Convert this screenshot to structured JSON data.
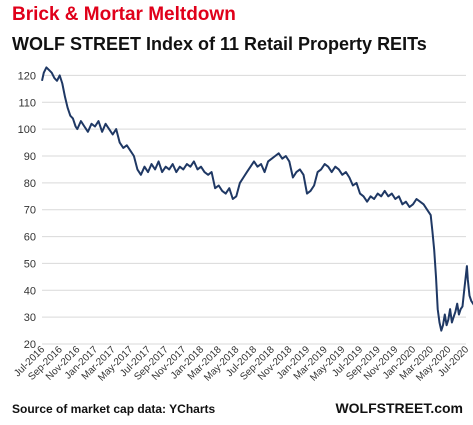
{
  "chart_data": {
    "type": "line",
    "title": "Brick & Mortar Meltdown",
    "subtitle": "WOLF STREET Index of 11 Retail Property REITs",
    "ylim": [
      20,
      125
    ],
    "yticks": [
      20,
      30,
      40,
      50,
      60,
      70,
      80,
      90,
      100,
      110,
      120
    ],
    "xlabels": [
      "Jul-2016",
      "Sep-2016",
      "Nov-2016",
      "Jan-2017",
      "Mar-2017",
      "May-2017",
      "Jul-2017",
      "Sep-2017",
      "Nov-2017",
      "Jan-2018",
      "Mar-2018",
      "May-2018",
      "Jul-2018",
      "Sep-2018",
      "Nov-2018",
      "Jan-2019",
      "Mar-2019",
      "May-2019",
      "Jul-2019",
      "Sep-2019",
      "Nov-2019",
      "Jan-2020",
      "Mar-2020",
      "May-2020",
      "Jul-2020"
    ],
    "grid": true,
    "series": [
      {
        "color": "#1f3864",
        "points": [
          [
            0.0,
            118
          ],
          [
            0.1,
            121
          ],
          [
            0.25,
            123
          ],
          [
            0.4,
            122
          ],
          [
            0.55,
            121
          ],
          [
            0.7,
            119
          ],
          [
            0.85,
            118
          ],
          [
            1.0,
            120
          ],
          [
            1.15,
            117
          ],
          [
            1.3,
            112
          ],
          [
            1.45,
            108
          ],
          [
            1.6,
            105
          ],
          [
            1.75,
            104
          ],
          [
            1.9,
            101
          ],
          [
            2.0,
            100
          ],
          [
            2.2,
            103
          ],
          [
            2.4,
            101
          ],
          [
            2.6,
            99
          ],
          [
            2.8,
            102
          ],
          [
            3.0,
            101
          ],
          [
            3.2,
            103
          ],
          [
            3.4,
            99
          ],
          [
            3.6,
            102
          ],
          [
            3.8,
            100
          ],
          [
            4.0,
            98
          ],
          [
            4.2,
            100
          ],
          [
            4.4,
            95
          ],
          [
            4.6,
            93
          ],
          [
            4.8,
            94
          ],
          [
            5.0,
            92
          ],
          [
            5.2,
            90
          ],
          [
            5.4,
            85
          ],
          [
            5.6,
            83
          ],
          [
            5.8,
            86
          ],
          [
            6.0,
            84
          ],
          [
            6.2,
            87
          ],
          [
            6.4,
            85
          ],
          [
            6.6,
            88
          ],
          [
            6.8,
            84
          ],
          [
            7.0,
            86
          ],
          [
            7.2,
            85
          ],
          [
            7.4,
            87
          ],
          [
            7.6,
            84
          ],
          [
            7.8,
            86
          ],
          [
            8.0,
            85
          ],
          [
            8.2,
            87
          ],
          [
            8.4,
            86
          ],
          [
            8.6,
            88
          ],
          [
            8.8,
            85
          ],
          [
            9.0,
            86
          ],
          [
            9.2,
            84
          ],
          [
            9.4,
            83
          ],
          [
            9.6,
            84
          ],
          [
            9.8,
            78
          ],
          [
            10.0,
            79
          ],
          [
            10.2,
            77
          ],
          [
            10.4,
            76
          ],
          [
            10.6,
            78
          ],
          [
            10.8,
            74
          ],
          [
            11.0,
            75
          ],
          [
            11.2,
            80
          ],
          [
            11.4,
            82
          ],
          [
            11.6,
            84
          ],
          [
            11.8,
            86
          ],
          [
            12.0,
            88
          ],
          [
            12.2,
            86
          ],
          [
            12.4,
            87
          ],
          [
            12.6,
            84
          ],
          [
            12.8,
            88
          ],
          [
            13.0,
            89
          ],
          [
            13.2,
            90
          ],
          [
            13.4,
            91
          ],
          [
            13.6,
            89
          ],
          [
            13.8,
            90
          ],
          [
            14.0,
            88
          ],
          [
            14.2,
            82
          ],
          [
            14.4,
            84
          ],
          [
            14.6,
            85
          ],
          [
            14.8,
            83
          ],
          [
            15.0,
            76
          ],
          [
            15.2,
            77
          ],
          [
            15.4,
            79
          ],
          [
            15.6,
            84
          ],
          [
            15.8,
            85
          ],
          [
            16.0,
            87
          ],
          [
            16.2,
            86
          ],
          [
            16.4,
            84
          ],
          [
            16.6,
            86
          ],
          [
            16.8,
            85
          ],
          [
            17.0,
            83
          ],
          [
            17.2,
            84
          ],
          [
            17.4,
            82
          ],
          [
            17.6,
            79
          ],
          [
            17.8,
            80
          ],
          [
            18.0,
            76
          ],
          [
            18.2,
            75
          ],
          [
            18.4,
            73
          ],
          [
            18.6,
            75
          ],
          [
            18.8,
            74
          ],
          [
            19.0,
            76
          ],
          [
            19.2,
            75
          ],
          [
            19.4,
            77
          ],
          [
            19.6,
            75
          ],
          [
            19.8,
            76
          ],
          [
            20.0,
            74
          ],
          [
            20.2,
            75
          ],
          [
            20.4,
            72
          ],
          [
            20.6,
            73
          ],
          [
            20.8,
            71
          ],
          [
            21.0,
            72
          ],
          [
            21.2,
            74
          ],
          [
            21.4,
            73
          ],
          [
            21.6,
            72
          ],
          [
            21.8,
            70
          ],
          [
            22.0,
            68
          ],
          [
            22.1,
            62
          ],
          [
            22.2,
            55
          ],
          [
            22.3,
            45
          ],
          [
            22.4,
            33
          ],
          [
            22.5,
            28
          ],
          [
            22.6,
            25
          ],
          [
            22.7,
            27
          ],
          [
            22.8,
            31
          ],
          [
            22.9,
            27
          ],
          [
            23.0,
            29
          ],
          [
            23.1,
            33
          ],
          [
            23.2,
            28
          ],
          [
            23.3,
            30
          ],
          [
            23.4,
            32
          ],
          [
            23.5,
            35
          ],
          [
            23.6,
            31
          ],
          [
            23.7,
            33
          ],
          [
            23.8,
            34
          ],
          [
            23.9,
            40
          ],
          [
            24.0,
            46
          ],
          [
            24.05,
            49
          ],
          [
            24.1,
            44
          ],
          [
            24.2,
            38
          ],
          [
            24.3,
            36
          ],
          [
            24.4,
            35
          ],
          [
            24.5,
            34
          ],
          [
            24.6,
            34
          ],
          [
            24.7,
            33
          ],
          [
            24.8,
            33
          ],
          [
            24.9,
            32
          ],
          [
            25.0,
            32
          ]
        ]
      }
    ]
  },
  "source": "Source of market cap data: YCharts",
  "brand": "WOLFSTREET.com"
}
